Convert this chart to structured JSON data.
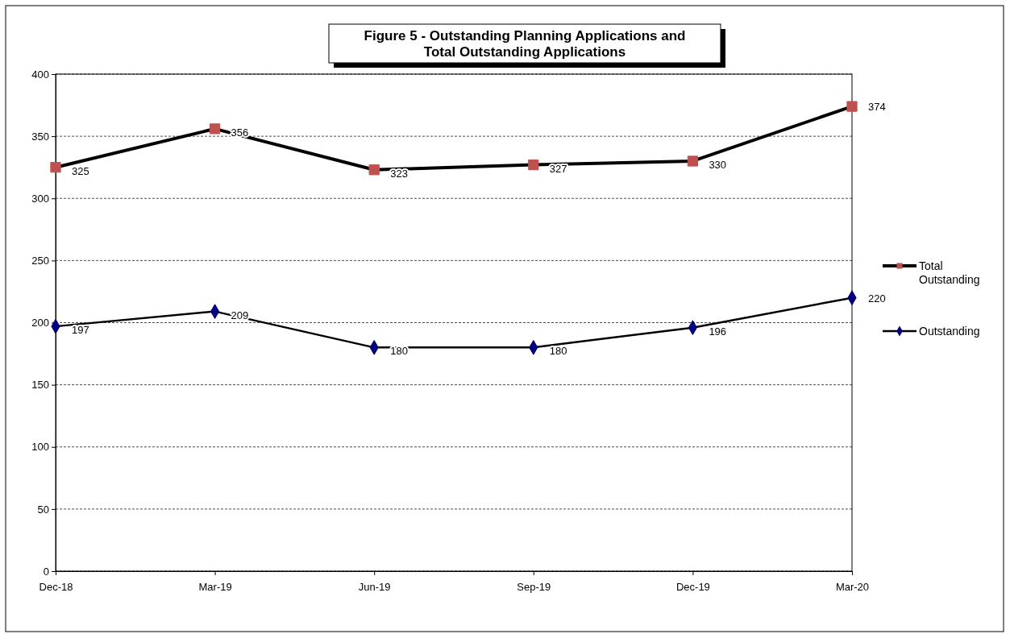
{
  "chart_data": {
    "type": "line",
    "title": "Figure 5 - Outstanding Planning Applications and Total Outstanding Applications",
    "categories": [
      "Dec-18",
      "Mar-19",
      "Jun-19",
      "Sep-19",
      "Dec-19",
      "Mar-20"
    ],
    "series": [
      {
        "name": "Total Outstanding",
        "color": "#c0504d",
        "marker": "square",
        "values": [
          325,
          356,
          323,
          327,
          330,
          374
        ]
      },
      {
        "name": "Outstanding",
        "color": "#000080",
        "marker": "diamond",
        "values": [
          197,
          209,
          180,
          180,
          196,
          220
        ]
      }
    ],
    "ylim": [
      0,
      400
    ],
    "yticks": [
      0,
      50,
      100,
      150,
      200,
      250,
      300,
      350,
      400
    ],
    "grid": "y",
    "legend": "right",
    "data_labels": true,
    "line_style": "solid"
  }
}
